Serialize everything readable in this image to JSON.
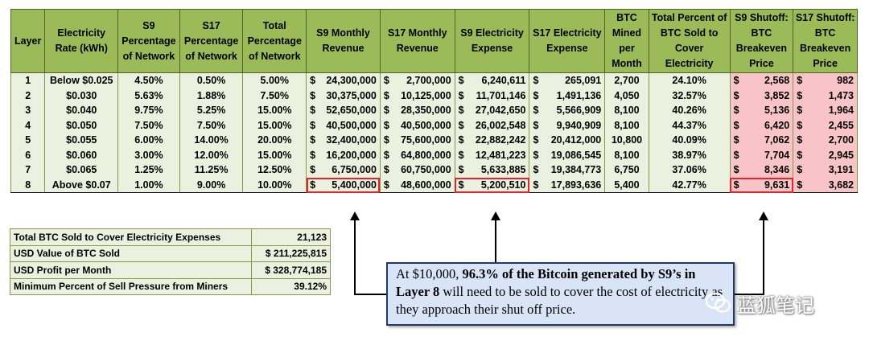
{
  "main_table": {
    "headers": [
      "Layer",
      "Electricity Rate (kWh)",
      "S9 Percentage of Network",
      "S17 Percentage of Network",
      "Total Percentage of Network",
      "S9 Monthly Revenue",
      "S17 Monthly Revenue",
      "S9 Electricity Expense",
      "S17 Electricity Expense",
      "BTC Mined per Month",
      "Total Percent of BTC Sold to Cover Electricity",
      "S9 Shutoff: BTC Breakeven Price",
      "S17 Shutoff: BTC Breakeven Price"
    ],
    "rows": [
      {
        "layer": "1",
        "rate": "Below $0.025",
        "s9_pct": "4.50%",
        "s17_pct": "0.50%",
        "total_pct": "5.00%",
        "s9_rev": "24,300,000",
        "s17_rev": "2,700,000",
        "s9_exp": "6,240,611",
        "s17_exp": "265,091",
        "btc": "2,700",
        "pct_sold": "24.10%",
        "s9_be": "2,568",
        "s17_be": "982"
      },
      {
        "layer": "2",
        "rate": "$0.030",
        "s9_pct": "5.63%",
        "s17_pct": "1.88%",
        "total_pct": "7.50%",
        "s9_rev": "30,375,000",
        "s17_rev": "10,125,000",
        "s9_exp": "11,701,146",
        "s17_exp": "1,491,136",
        "btc": "4,050",
        "pct_sold": "32.57%",
        "s9_be": "3,852",
        "s17_be": "1,473"
      },
      {
        "layer": "3",
        "rate": "$0.040",
        "s9_pct": "9.75%",
        "s17_pct": "5.25%",
        "total_pct": "15.00%",
        "s9_rev": "52,650,000",
        "s17_rev": "28,350,000",
        "s9_exp": "27,042,650",
        "s17_exp": "5,566,909",
        "btc": "8,100",
        "pct_sold": "40.26%",
        "s9_be": "5,136",
        "s17_be": "1,964"
      },
      {
        "layer": "4",
        "rate": "$0.050",
        "s9_pct": "7.50%",
        "s17_pct": "7.50%",
        "total_pct": "15.00%",
        "s9_rev": "40,500,000",
        "s17_rev": "40,500,000",
        "s9_exp": "26,002,548",
        "s17_exp": "9,940,909",
        "btc": "8,100",
        "pct_sold": "44.37%",
        "s9_be": "6,420",
        "s17_be": "2,455"
      },
      {
        "layer": "5",
        "rate": "$0.055",
        "s9_pct": "6.00%",
        "s17_pct": "14.00%",
        "total_pct": "20.00%",
        "s9_rev": "32,400,000",
        "s17_rev": "75,600,000",
        "s9_exp": "22,882,242",
        "s17_exp": "20,412,000",
        "btc": "10,800",
        "pct_sold": "40.09%",
        "s9_be": "7,062",
        "s17_be": "2,700"
      },
      {
        "layer": "6",
        "rate": "$0.060",
        "s9_pct": "3.00%",
        "s17_pct": "12.00%",
        "total_pct": "15.00%",
        "s9_rev": "16,200,000",
        "s17_rev": "64,800,000",
        "s9_exp": "12,481,223",
        "s17_exp": "19,086,545",
        "btc": "8,100",
        "pct_sold": "38.97%",
        "s9_be": "7,704",
        "s17_be": "2,945"
      },
      {
        "layer": "7",
        "rate": "$0.065",
        "s9_pct": "1.25%",
        "s17_pct": "11.25%",
        "total_pct": "12.50%",
        "s9_rev": "6,750,000",
        "s17_rev": "60,750,000",
        "s9_exp": "5,633,885",
        "s17_exp": "19,384,773",
        "btc": "6,750",
        "pct_sold": "37.06%",
        "s9_be": "8,346",
        "s17_be": "3,191"
      },
      {
        "layer": "8",
        "rate": "Above $0.07",
        "s9_pct": "1.00%",
        "s17_pct": "9.00%",
        "total_pct": "10.00%",
        "s9_rev": "5,400,000",
        "s17_rev": "48,600,000",
        "s9_exp": "5,200,510",
        "s17_exp": "17,893,636",
        "btc": "5,400",
        "pct_sold": "42.77%",
        "s9_be": "9,631",
        "s17_be": "3,682"
      }
    ]
  },
  "currency_symbol": "$",
  "summary": [
    {
      "label": "Total BTC Sold to Cover Electricity Expenses",
      "value": "21,123"
    },
    {
      "label": "USD Value of BTC Sold",
      "value": "$ 211,225,815"
    },
    {
      "label": "USD Profit per Month",
      "value": "$ 328,774,185"
    },
    {
      "label": "Minimum Percent of Sell Pressure from Miners",
      "value": "39.12%"
    }
  ],
  "callout": {
    "part1": "At $10,000, ",
    "bold": "96.3% of the Bitcoin generated by S9’s in Layer 8",
    "part2": " will need to be sold to cover the cost of electricity as they approach their shut off price."
  },
  "watermark": "蓝狐笔记",
  "colors": {
    "header": "#9bbb59",
    "cell": "#ebf1de",
    "breakeven": "#f9c4c7",
    "highlight": "#e8212a",
    "callout_bg": "#d9e5f7"
  }
}
